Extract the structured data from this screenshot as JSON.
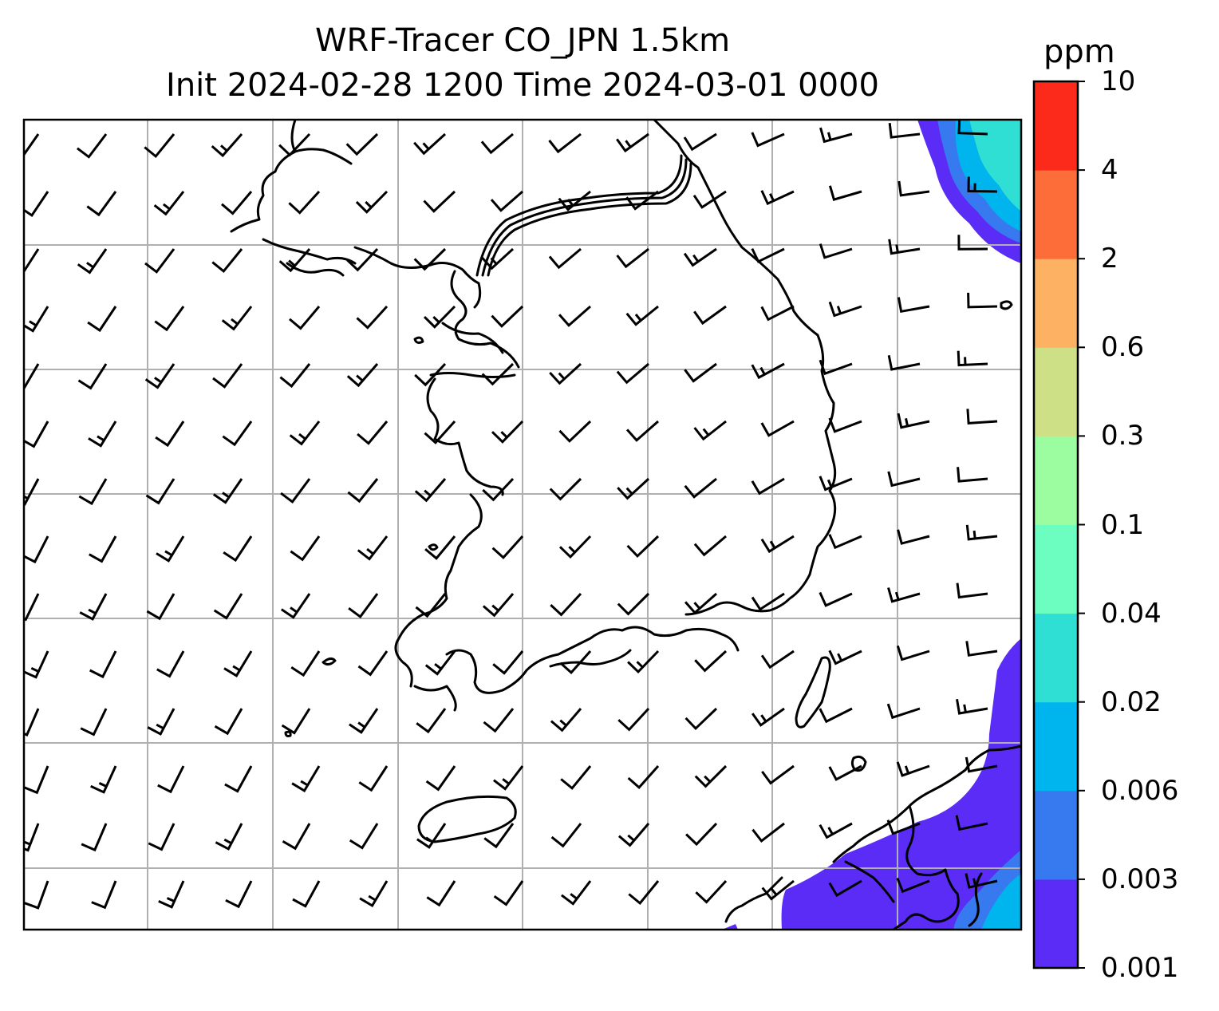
{
  "title": {
    "line1": "WRF-Tracer CO_JPN 1.5km",
    "line2": "Init 2024-02-28 1200 Time 2024-03-01 0000"
  },
  "colorbar": {
    "units": "ppm",
    "levels": [
      "0.001",
      "0.003",
      "0.006",
      "0.02",
      "0.04",
      "0.1",
      "0.3",
      "0.6",
      "2",
      "4",
      "10"
    ],
    "colors": [
      "#5b2cf6",
      "#3779ef",
      "#00b4ed",
      "#30dfd4",
      "#6cfdc0",
      "#9bfca0",
      "#cde085",
      "#fdb263",
      "#fd6d3a",
      "#fb2a1a"
    ]
  },
  "map": {
    "gridlines": "on",
    "coastline_color": "#000000",
    "gridline_color": "#b0b0b0",
    "wind_barbs": "on"
  }
}
